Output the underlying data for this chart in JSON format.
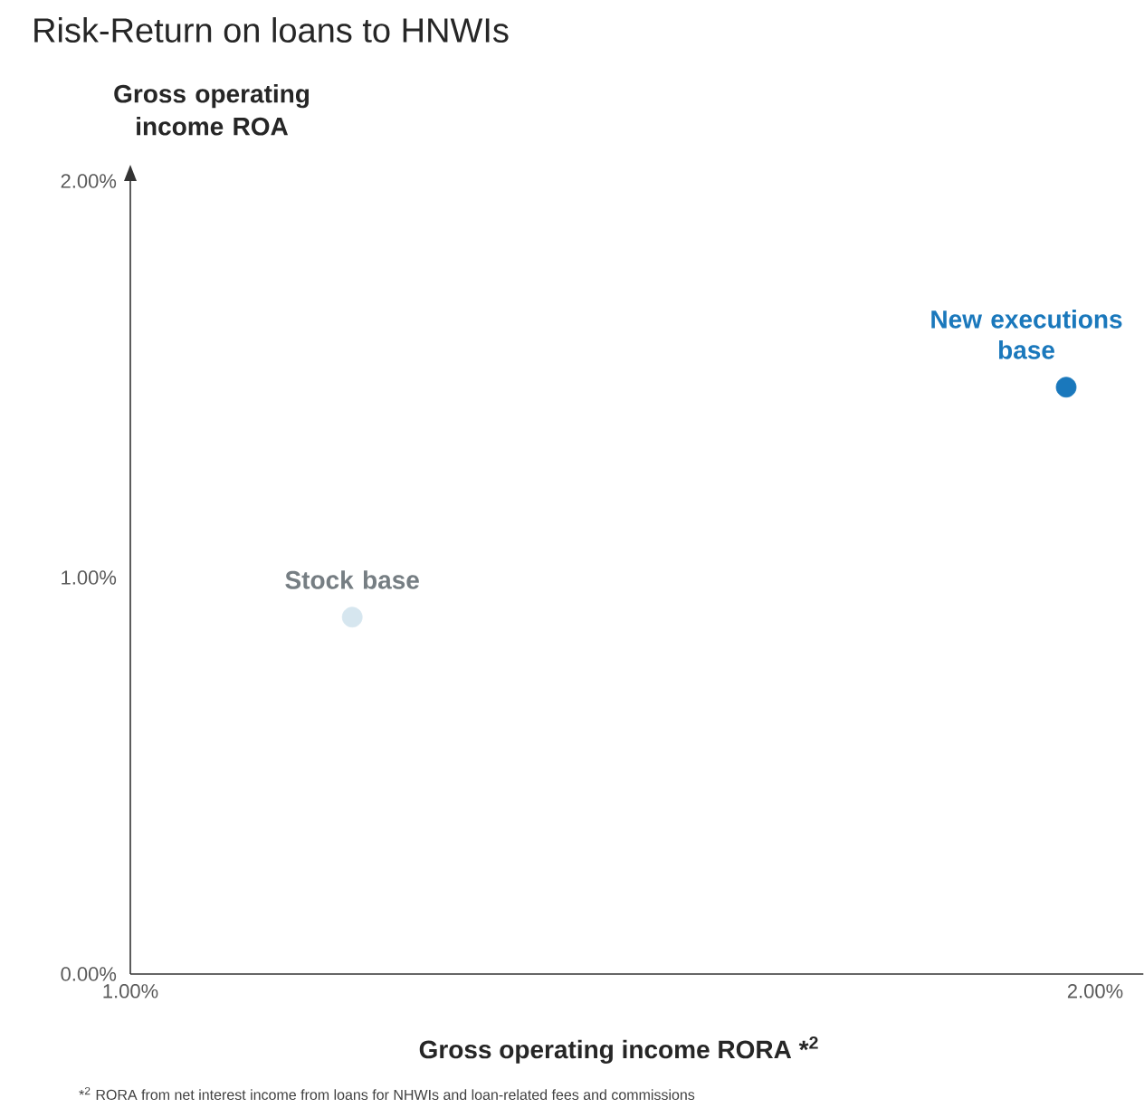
{
  "chart_data": {
    "type": "scatter",
    "title": "Risk-Return on loans to HNWIs",
    "xlabel": "Gross operating income RORA *$^{2}$",
    "ylabel": "Gross operating income ROA",
    "xlim": [
      1,
      2.05
    ],
    "xticks": [
      {
        "value": 1,
        "label": "1.00%"
      },
      {
        "value": 2,
        "label": "2.00%"
      }
    ],
    "ylim": [
      0,
      2
    ],
    "yticks": [
      {
        "value": 0,
        "label": "0.00%"
      },
      {
        "value": 1,
        "label": "1.00%"
      },
      {
        "value": 2,
        "label": "2.00%"
      }
    ],
    "marker": "circle",
    "series": [
      {
        "name": "Stock base",
        "color": "#d6e6ef",
        "x": [
          1.23
        ],
        "values": [
          0.9
        ]
      },
      {
        "name": "New executions base",
        "color": "#1a78bc",
        "x": [
          1.97
        ],
        "values": [
          1.48
        ]
      }
    ],
    "annotations": [
      "*$^{2}$ RORA from net interest income from loans for NHWIs and loan-related fees and commissions"
    ]
  }
}
